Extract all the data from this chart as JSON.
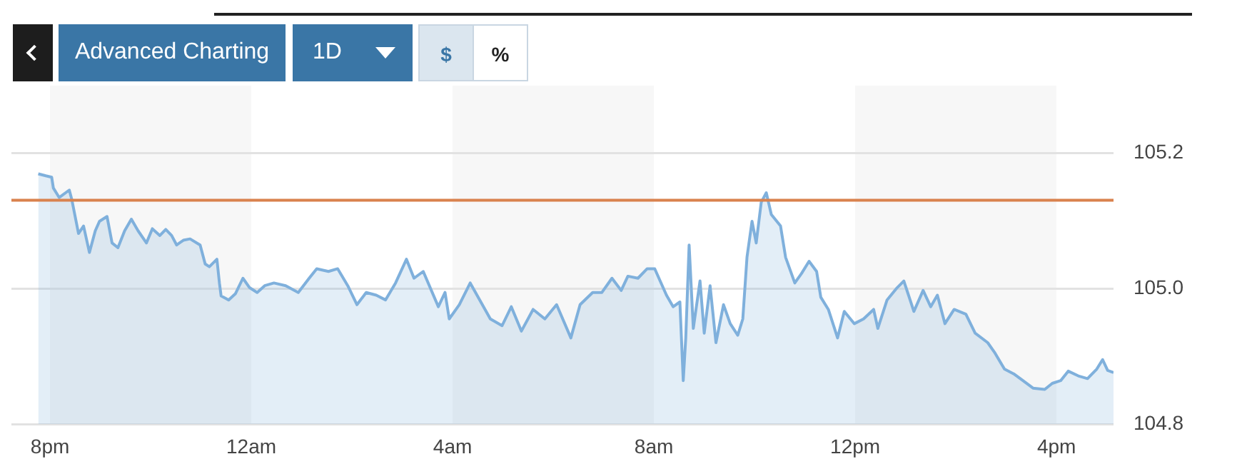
{
  "chart_data": {
    "type": "area",
    "annotations": [
      "Advanced Charting",
      "1D",
      "$",
      "%"
    ],
    "x": [
      "--01-01T19:46",
      "--01-01T19:55",
      "--01-01T20:02",
      "--01-01T20:04",
      "--01-01T20:11",
      "--01-01T20:23",
      "--01-01T20:26",
      "--01-01T20:34",
      "--01-01T20:40",
      "--01-01T20:47",
      "--01-01T20:54",
      "--01-01T20:59",
      "--01-01T21:08",
      "--01-01T21:14",
      "--01-01T21:21",
      "--01-01T21:29",
      "--01-01T21:37",
      "--01-01T21:45",
      "--01-01T21:55",
      "--01-01T22:02",
      "--01-01T22:11",
      "--01-01T22:18",
      "--01-01T22:25",
      "--01-01T22:31",
      "--01-01T22:39",
      "--01-01T22:47",
      "--01-01T22:59",
      "--01-01T23:05",
      "--01-01T23:10",
      "--01-01T23:19",
      "--01-01T23:22",
      "--01-01T23:24",
      "--01-01T23:33",
      "--01-01T23:41",
      "--01-01T23:50",
      "--01-01T23:58",
      "--01-02T00:07",
      "--01-02T00:16",
      "--01-02T00:27",
      "--01-02T00:41",
      "--01-02T00:56",
      "--01-02T01:09",
      "--01-02T01:18",
      "--01-02T01:32",
      "--01-02T01:43",
      "--01-02T01:55",
      "--01-02T02:06",
      "--01-02T02:17",
      "--01-02T02:29",
      "--01-02T02:40",
      "--01-02T02:52",
      "--01-02T03:05",
      "--01-02T03:14",
      "--01-02T03:25",
      "--01-02T03:43",
      "--01-02T03:51",
      "--01-02T03:56",
      "--01-02T04:08",
      "--01-02T04:21",
      "--01-02T04:45",
      "--01-02T04:59",
      "--01-02T05:10",
      "--01-02T05:22",
      "--01-02T05:36",
      "--01-02T05:50",
      "--01-02T06:04",
      "--01-02T06:21",
      "--01-02T06:32",
      "--01-02T06:47",
      "--01-02T06:58",
      "--01-02T07:10",
      "--01-02T07:21",
      "--01-02T07:29",
      "--01-02T07:41",
      "--01-02T07:52",
      "--01-02T08:01",
      "--01-02T08:15",
      "--01-02T08:23",
      "--01-02T08:31",
      "--01-02T08:35",
      "--01-02T08:38",
      "--01-02T08:42",
      "--01-02T08:47",
      "--01-02T08:55",
      "--01-02T09:00",
      "--01-02T09:07",
      "--01-02T09:14",
      "--01-02T09:23",
      "--01-02T09:31",
      "--01-02T09:40",
      "--01-02T09:46",
      "--01-02T09:51",
      "--01-02T09:57",
      "--01-02T10:02",
      "--01-02T10:08",
      "--01-02T10:14",
      "--01-02T10:20",
      "--01-02T10:31",
      "--01-02T10:37",
      "--01-02T10:48",
      "--01-02T10:56",
      "--01-02T11:05",
      "--01-02T11:14",
      "--01-02T11:19",
      "--01-02T11:28",
      "--01-02T11:39",
      "--01-02T11:47",
      "--01-02T11:59",
      "--01-02T12:10",
      "--01-02T12:22",
      "--01-02T12:27",
      "--01-02T12:38",
      "--01-02T12:50",
      "--01-02T12:58",
      "--01-02T13:10",
      "--01-02T13:21",
      "--01-02T13:30",
      "--01-02T13:38",
      "--01-02T13:47",
      "--01-02T13:58",
      "--01-02T14:12",
      "--01-02T14:23",
      "--01-02T14:38",
      "--01-02T14:46",
      "--01-02T14:58",
      "--01-02T15:09",
      "--01-02T15:20",
      "--01-02T15:32",
      "--01-02T15:46",
      "--01-02T15:55",
      "--01-02T16:05",
      "--01-02T16:14",
      "--01-02T16:26",
      "--01-02T16:37",
      "--01-02T16:48",
      "--01-02T16:55",
      "--01-02T17:01",
      "--01-02T17:08"
    ],
    "series": [
      {
        "color": "#7fb0dc",
        "values": [
          105.169,
          105.166,
          105.164,
          105.148,
          105.134,
          105.145,
          105.131,
          105.081,
          105.092,
          105.053,
          105.085,
          105.099,
          105.106,
          105.067,
          105.06,
          105.085,
          105.102,
          105.085,
          105.067,
          105.088,
          105.078,
          105.087,
          105.078,
          105.064,
          105.071,
          105.073,
          105.064,
          105.036,
          105.032,
          105.043,
          105.008,
          104.989,
          104.983,
          104.992,
          105.015,
          105.001,
          104.994,
          105.004,
          105.008,
          105.004,
          104.994,
          105.015,
          105.029,
          105.025,
          105.029,
          105.004,
          104.976,
          104.994,
          104.99,
          104.983,
          105.008,
          105.043,
          105.015,
          105.025,
          104.973,
          104.994,
          104.955,
          104.976,
          105.008,
          104.955,
          104.945,
          104.973,
          104.937,
          104.969,
          104.955,
          104.976,
          104.927,
          104.976,
          104.994,
          104.994,
          105.015,
          104.997,
          105.018,
          105.015,
          105.029,
          105.029,
          104.99,
          104.973,
          104.98,
          104.864,
          104.927,
          105.064,
          104.941,
          105.011,
          104.934,
          105.004,
          104.92,
          104.976,
          104.948,
          104.931,
          104.955,
          105.046,
          105.099,
          105.067,
          105.127,
          105.141,
          105.109,
          105.092,
          105.046,
          105.008,
          105.022,
          105.04,
          105.025,
          104.987,
          104.969,
          104.927,
          104.966,
          104.948,
          104.955,
          104.969,
          104.941,
          104.983,
          105.001,
          105.011,
          104.966,
          104.997,
          104.973,
          104.99,
          104.948,
          104.969,
          104.962,
          104.934,
          104.92,
          104.906,
          104.881,
          104.874,
          104.864,
          104.853,
          104.851,
          104.86,
          104.864,
          104.878,
          104.871,
          104.867,
          104.881,
          104.895,
          104.879,
          104.876
        ]
      }
    ],
    "xlim": [
      "--01-01T19:14",
      "--01-02T17:08"
    ],
    "xticks": [
      {
        "value": "--01-01T20:00",
        "label": "8pm"
      },
      {
        "value": "--01-02T00:00",
        "label": "12am"
      },
      {
        "value": "--01-02T04:00",
        "label": "4am"
      },
      {
        "value": "--01-02T08:00",
        "label": "8am"
      },
      {
        "value": "--01-02T12:00",
        "label": "12pm"
      },
      {
        "value": "--01-02T16:00",
        "label": "4pm"
      }
    ],
    "ylim": [
      104.8,
      105.2
    ],
    "yticks": [
      104.8,
      {
        "value": 105,
        "label": "105.0"
      },
      105.2
    ],
    "grid": "y",
    "ref_lines": [
      {
        "axis": "y",
        "value": 105.13,
        "color": "#d9824e"
      }
    ],
    "bands": [
      {
        "axis": "x",
        "from": "--01-01T20:00",
        "to": "--01-02T00:00",
        "color": "#f7f7f7"
      },
      {
        "axis": "x",
        "from": "--01-02T04:00",
        "to": "--01-02T08:00",
        "color": "#f7f7f7"
      },
      {
        "axis": "x",
        "from": "--01-02T12:00",
        "to": "--01-02T16:00",
        "color": "#f7f7f7"
      }
    ]
  }
}
